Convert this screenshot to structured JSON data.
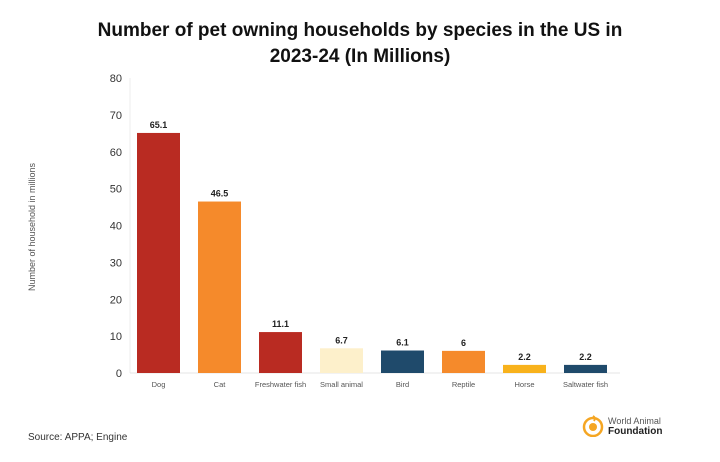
{
  "chart_data": {
    "type": "bar",
    "title": "Number of pet owning households by species in the US in 2023-24 (In Millions)",
    "title_lines": [
      "Number of pet owning households by species in the US in",
      "2023-24 (In Millions)"
    ],
    "xlabel": "",
    "ylabel": "Number of household in millions",
    "ylim": [
      0,
      80
    ],
    "yticks": [
      0,
      10,
      20,
      30,
      40,
      50,
      60,
      70,
      80
    ],
    "grid": false,
    "categories": [
      "Dog",
      "Cat",
      "Freshwater fish",
      "Small animal",
      "Bird",
      "Reptile",
      "Horse",
      "Saltwater fish"
    ],
    "values": [
      65.1,
      46.5,
      11.1,
      6.7,
      6.1,
      6,
      2.2,
      2.2
    ],
    "data_labels": [
      "65.1",
      "46.5",
      "11.1",
      "6.7",
      "6.1",
      "6",
      "2.2",
      "2.2"
    ],
    "colors": [
      "#B92B22",
      "#F58A2B",
      "#B92B22",
      "#FDF0CB",
      "#1F4A6B",
      "#F58A2B",
      "#F8B21C",
      "#1F4A6B"
    ]
  },
  "source": "Source: APPA; Engine",
  "logo": {
    "line1": "World Animal",
    "line2": "Foundation",
    "color": "#F5A623"
  }
}
